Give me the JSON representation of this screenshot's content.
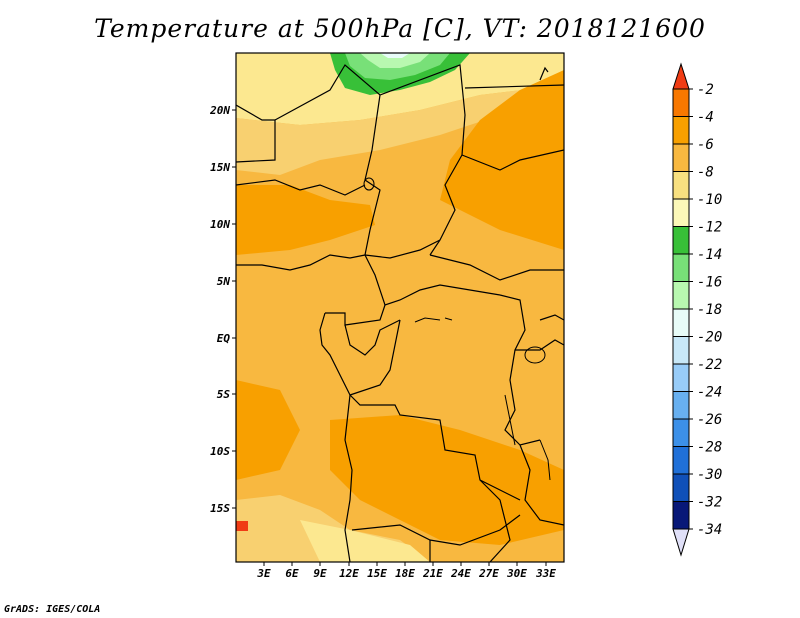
{
  "title": "Temperature at 500hPa [C], VT: 2018121600",
  "footer": "GrADS: IGES/COLA",
  "map": {
    "lat_labels": [
      "20N",
      "15N",
      "10N",
      "5N",
      "EQ",
      "5S",
      "10S",
      "15S"
    ],
    "lon_labels": [
      "3E",
      "6E",
      "9E",
      "12E",
      "15E",
      "18E",
      "21E",
      "24E",
      "27E",
      "30E",
      "33E"
    ]
  },
  "colorbar": {
    "labels": [
      "-2",
      "-4",
      "-6",
      "-8",
      "-10",
      "-12",
      "-14",
      "-16",
      "-18",
      "-20",
      "-22",
      "-24",
      "-26",
      "-28",
      "-30",
      "-32",
      "-34"
    ],
    "colors": [
      "#f03c14",
      "#f87800",
      "#f8a000",
      "#f8b840",
      "#f8e080",
      "#fcf8b8",
      "#38c038",
      "#78e078",
      "#b8f8b0",
      "#e8fcf8",
      "#c8e8f8",
      "#98ccf8",
      "#68b0f0",
      "#3c90e8",
      "#2070d8",
      "#1050b8",
      "#081878"
    ],
    "top_color": "#f03c14",
    "bottom_color": "#e0e0f8"
  },
  "colors": {
    "base": "#f8b840",
    "warm": "#f8a000",
    "cool": "#f8d070",
    "cooler": "#fce890",
    "green": "#38c038",
    "light_green": "#b8f8b0",
    "border": "#000000"
  }
}
